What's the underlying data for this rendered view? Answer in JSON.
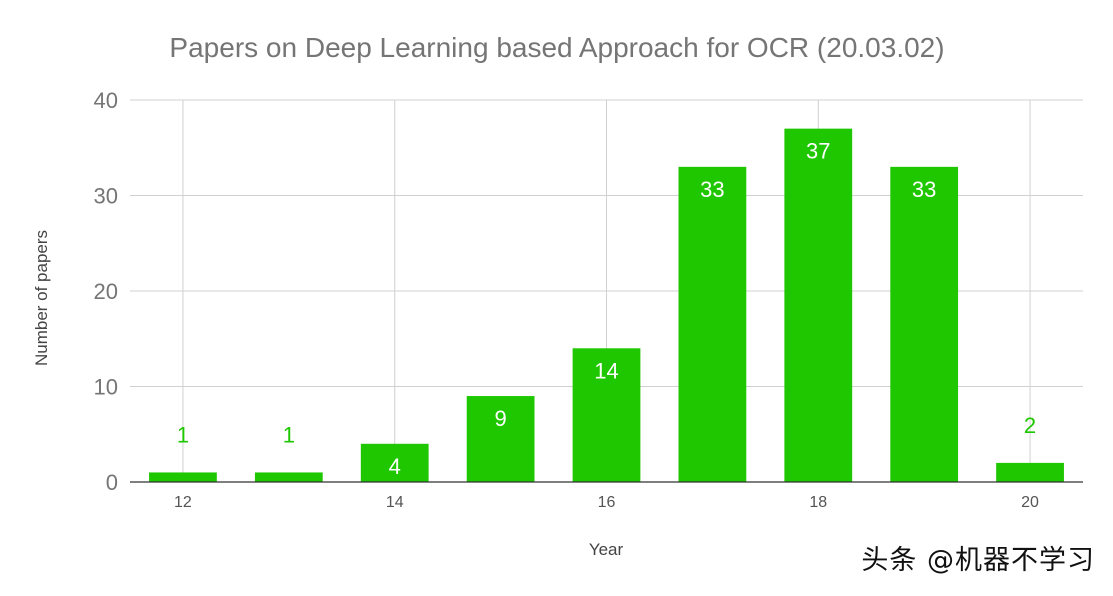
{
  "chart_data": {
    "type": "bar",
    "title": "Papers on Deep Learning based Approach for OCR (20.03.02)",
    "xlabel": "Year",
    "ylabel": "Number of papers",
    "categories": [
      "12",
      "13",
      "14",
      "15",
      "16",
      "17",
      "18",
      "19",
      "20"
    ],
    "values": [
      1,
      1,
      4,
      9,
      14,
      33,
      37,
      33,
      2
    ],
    "x_tick_labels": [
      "12",
      "14",
      "16",
      "18",
      "20"
    ],
    "y_ticks": [
      0,
      10,
      20,
      30,
      40
    ],
    "ylim": [
      0,
      40
    ],
    "grid": true,
    "bar_color": "#1ec700",
    "label_inside_color": "#ffffff",
    "label_outside_color": "#1ec700"
  },
  "watermark": "头条 @机器不学习"
}
